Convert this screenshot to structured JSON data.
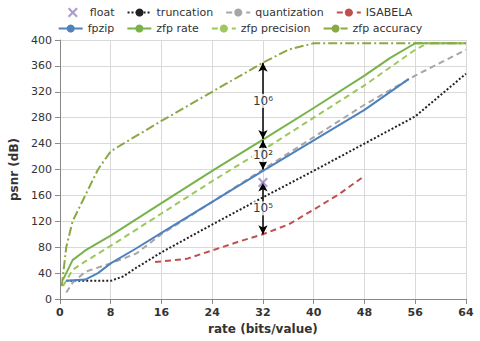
{
  "chart_data": {
    "type": "line",
    "xlabel": "rate (bits/value)",
    "ylabel": "psnr (dB)",
    "xlim": [
      0,
      64
    ],
    "xticks": [
      0,
      8,
      16,
      24,
      32,
      40,
      48,
      56,
      64
    ],
    "ylim": [
      0,
      400
    ],
    "yticks": [
      0,
      40,
      80,
      120,
      160,
      200,
      240,
      280,
      320,
      360,
      400
    ],
    "grid": true,
    "legend": "top",
    "series": [
      {
        "name": "float",
        "type": "scatter",
        "marker": "x",
        "color": "#9a80c2",
        "x": [
          32
        ],
        "values": [
          180
        ]
      },
      {
        "name": "truncation",
        "color": "#222222",
        "line_style": "dotted",
        "x": [
          1,
          4,
          8,
          10,
          12,
          16,
          24,
          32,
          40,
          48,
          56,
          64
        ],
        "values": [
          28,
          28,
          28,
          35,
          48,
          72,
          115,
          157,
          198,
          240,
          282,
          348
        ]
      },
      {
        "name": "quantization",
        "color": "#a6a6a6",
        "line_style": "dashed",
        "x": [
          1,
          2,
          4,
          8,
          12,
          16,
          24,
          32,
          40,
          48,
          56,
          64
        ],
        "values": [
          10,
          25,
          42,
          55,
          70,
          100,
          150,
          200,
          250,
          300,
          345,
          385
        ]
      },
      {
        "name": "ISABELA",
        "color": "#c0504d",
        "line_style": "dashed",
        "x": [
          15,
          20,
          24,
          28,
          32,
          36,
          40,
          44,
          48
        ],
        "values": [
          57,
          62,
          75,
          88,
          100,
          115,
          138,
          162,
          190
        ]
      },
      {
        "name": "fpzip",
        "color": "#4f81bd",
        "line_style": "solid",
        "x": [
          1,
          4,
          6,
          8,
          12,
          16,
          24,
          32,
          40,
          48,
          55
        ],
        "values": [
          28,
          30,
          40,
          55,
          78,
          102,
          150,
          198,
          245,
          292,
          340
        ]
      },
      {
        "name": "zfp rate",
        "color": "#77b34a",
        "line_style": "solid",
        "x": [
          0.5,
          2,
          4,
          8,
          16,
          24,
          32,
          40,
          48,
          52,
          56,
          64
        ],
        "values": [
          30,
          60,
          75,
          98,
          148,
          198,
          246,
          295,
          345,
          372,
          395,
          395
        ]
      },
      {
        "name": "zfp precision",
        "color": "#9cc85e",
        "line_style": "dashed",
        "x": [
          0.5,
          2,
          4,
          8,
          16,
          24,
          32,
          40,
          48,
          56,
          58,
          64
        ],
        "values": [
          20,
          45,
          58,
          82,
          132,
          182,
          230,
          280,
          330,
          385,
          395,
          395
        ]
      },
      {
        "name": "zfp accuracy",
        "color": "#8aa843",
        "line_style": "dashdot",
        "x": [
          0.3,
          1,
          2,
          4,
          6,
          8,
          10,
          16,
          24,
          32,
          36,
          40,
          64
        ],
        "values": [
          20,
          80,
          120,
          160,
          200,
          228,
          240,
          275,
          320,
          365,
          385,
          395,
          395
        ]
      }
    ],
    "annotations": [
      {
        "text": "10⁶",
        "x": 32,
        "from": 247,
        "to": 365
      },
      {
        "text": "10²",
        "x": 32,
        "from": 200,
        "to": 245
      },
      {
        "text": "10⁵",
        "x": 32,
        "from": 100,
        "to": 180
      }
    ]
  }
}
